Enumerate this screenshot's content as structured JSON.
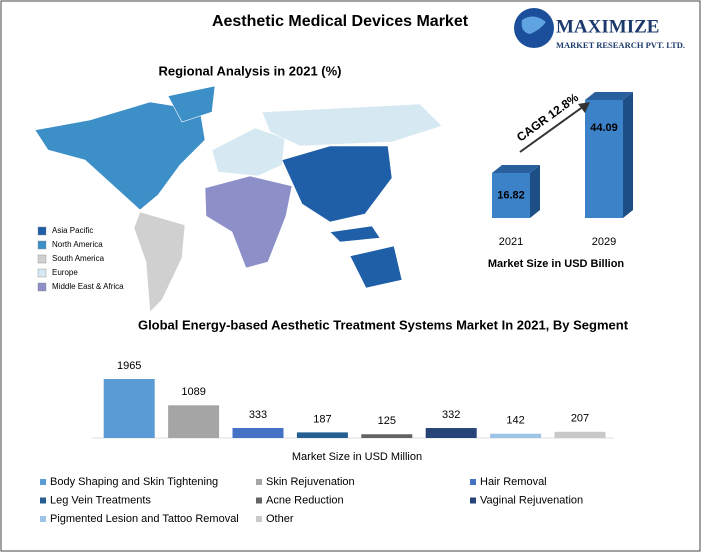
{
  "header": {
    "title": "Aesthetic Medical Devices Market",
    "logo": {
      "name": "MAXIMIZE",
      "tagline": "MARKET RESEARCH PVT. LTD."
    }
  },
  "map": {
    "title": "Regional Analysis in 2021 (%)",
    "legend": [
      {
        "name": "Asia Pacific",
        "color": "#1f5fa8"
      },
      {
        "name": "North America",
        "color": "#3d8fc8"
      },
      {
        "name": "South America",
        "color": "#d0d0d0"
      },
      {
        "name": "Europe",
        "color": "#d6e9f2"
      },
      {
        "name": "Middle East & Africa",
        "color": "#8c8fc8"
      }
    ]
  },
  "chart_data": [
    {
      "type": "bar3d",
      "categories": [
        "2021",
        "2029"
      ],
      "values": [
        16.82,
        44.09
      ],
      "color": "#3b82c9",
      "annotation": "CAGR 12.8%",
      "x_label": "Market Size in USD Billion"
    },
    {
      "type": "bar",
      "title": "Global Energy-based Aesthetic Treatment Systems Market In 2021, By Segment",
      "categories": [
        "Body Shaping and Skin Tightening",
        "Skin Rejuvenation",
        "Hair Removal",
        "Leg Vein Treatments",
        "Acne Reduction",
        "Vaginal Rejuvenation",
        "Pigmented Lesion and Tattoo Removal",
        "Other"
      ],
      "values": [
        1965,
        1089,
        333,
        187,
        125,
        332,
        142,
        207
      ],
      "colors": [
        "#5b9bd5",
        "#a5a5a5",
        "#4472c4",
        "#255e91",
        "#636363",
        "#264478",
        "#9dc3e6",
        "#c9c9c9"
      ],
      "x_label": "Market Size in USD Million"
    }
  ]
}
